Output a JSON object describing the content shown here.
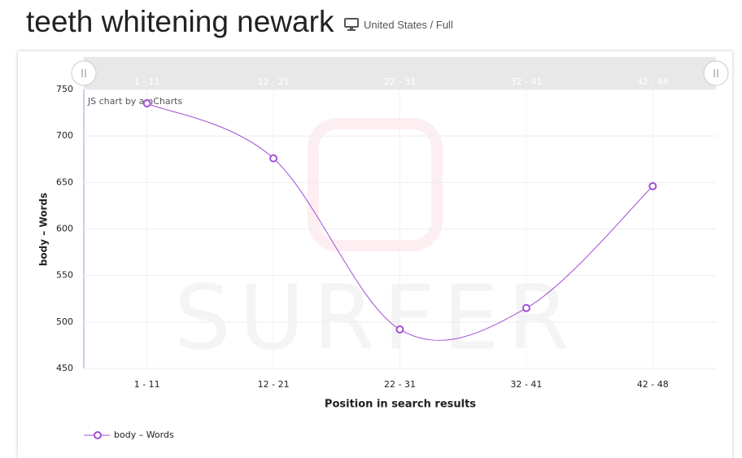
{
  "header": {
    "title": "teeth whitening newark",
    "location": "United States / Full"
  },
  "chart_data": {
    "type": "line",
    "credit": "JS chart by amCharts",
    "watermark": "SURFER",
    "x_label": "Position in search results",
    "y_label": "body – Words",
    "categories": [
      "1 - 11",
      "12 - 21",
      "22 - 31",
      "32 - 41",
      "42 - 48"
    ],
    "series": [
      {
        "name": "body – Words",
        "color": "#a24fd6",
        "values": [
          735,
          676,
          492,
          515,
          646
        ]
      }
    ],
    "ylim": [
      450,
      750
    ],
    "yticks": [
      450,
      500,
      550,
      600,
      650,
      700,
      750
    ],
    "grid": true,
    "smooth": true
  }
}
